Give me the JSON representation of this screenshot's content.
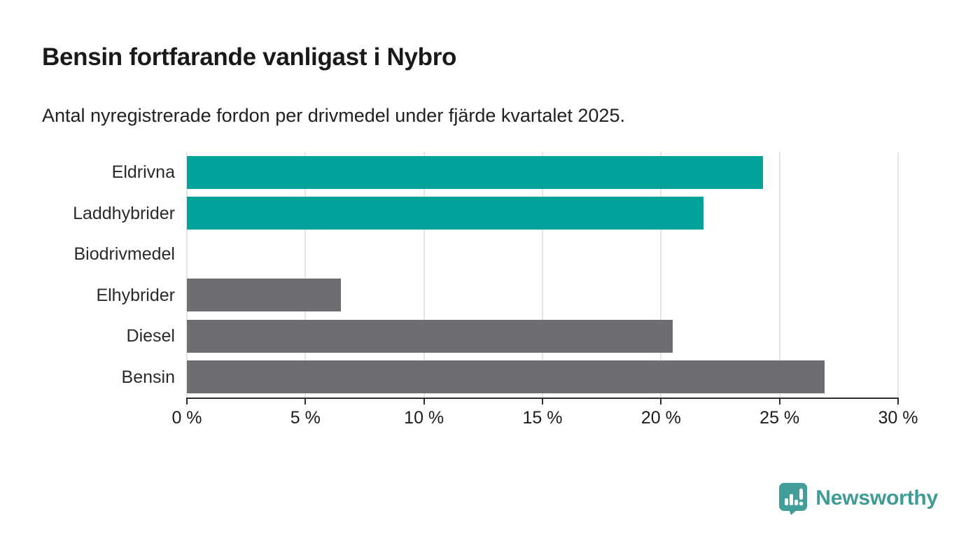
{
  "title": "Bensin fortfarande vanligast i Nybro",
  "subtitle": "Antal nyregistrerade fordon per drivmedel under fjärde kvartalet 2025.",
  "colors": {
    "highlight_bar": "#00a29a",
    "default_bar": "#6e6d72",
    "gridline": "#e4e4e4",
    "axis": "#2d2d2d",
    "logo_teal": "#429e99"
  },
  "chart_data": {
    "type": "bar",
    "orientation": "horizontal",
    "title": "Bensin fortfarande vanligast i Nybro",
    "subtitle": "Antal nyregistrerade fordon per drivmedel under fjärde kvartalet 2025.",
    "categories": [
      "Eldrivna",
      "Laddhybrider",
      "Biodrivmedel",
      "Elhybrider",
      "Diesel",
      "Bensin"
    ],
    "values": [
      24.3,
      21.8,
      0,
      6.5,
      20.5,
      26.9
    ],
    "bar_colors": [
      "#00a29a",
      "#00a29a",
      "#6e6d72",
      "#6e6d72",
      "#6e6d72",
      "#6e6d72"
    ],
    "xlabel": "",
    "ylabel": "",
    "xlim": [
      0,
      30
    ],
    "x_tick_values": [
      0,
      5,
      10,
      15,
      20,
      25,
      30
    ],
    "x_tick_labels": [
      "0 %",
      "5 %",
      "10 %",
      "15 %",
      "20 %",
      "25 %",
      "30 %"
    ],
    "grid": true,
    "legend": false
  },
  "footer": {
    "brand": "Newsworthy",
    "logo_icon": "speech-bubble-bar-chart-icon"
  }
}
